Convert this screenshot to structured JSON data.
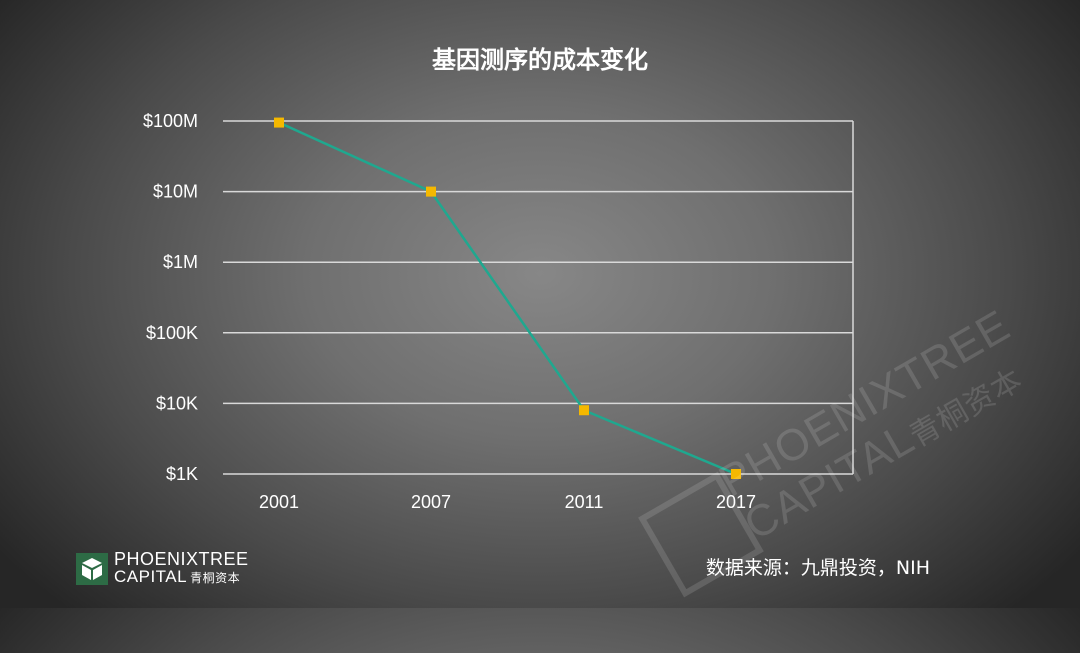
{
  "chart_data": {
    "type": "line",
    "title": "基因测序的成本变化",
    "y_scale": "log",
    "ylim": [
      1000,
      100000000
    ],
    "y_ticks": [
      {
        "value": 100000000,
        "label": "$100M"
      },
      {
        "value": 10000000,
        "label": "$10M"
      },
      {
        "value": 1000000,
        "label": "$1M"
      },
      {
        "value": 100000,
        "label": "$100K"
      },
      {
        "value": 10000,
        "label": "$10K"
      },
      {
        "value": 1000,
        "label": "$1K"
      }
    ],
    "categories": [
      "2001",
      "2007",
      "2011",
      "2017"
    ],
    "series": [
      {
        "values": [
          95000000,
          10000000,
          8000,
          1000
        ]
      }
    ],
    "line_color": "#1fa88f",
    "marker_color": "#f5b800",
    "gridlines": true,
    "legend": "none"
  },
  "source": "数据来源：九鼎投资，NIH",
  "logo": {
    "line1": "PHOENIXTREE",
    "line2": "CAPITAL",
    "line2_cn": "青桐资本"
  }
}
